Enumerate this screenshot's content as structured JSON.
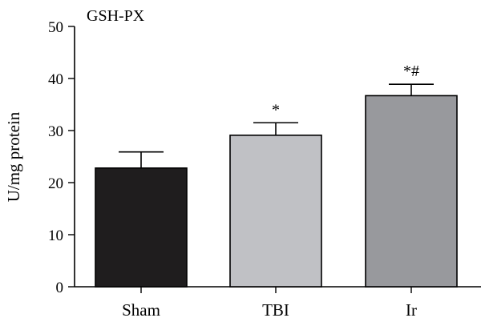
{
  "chart_data": {
    "type": "bar",
    "title": "GSH-PX",
    "xlabel": "",
    "ylabel": "U/mg protein",
    "ylim": [
      0,
      50
    ],
    "yticks": [
      0,
      10,
      20,
      30,
      40,
      50
    ],
    "categories": [
      "Sham",
      "TBI",
      "Ir"
    ],
    "values": [
      22.8,
      29.1,
      36.7
    ],
    "errors": [
      3.1,
      2.4,
      2.2
    ],
    "annotations": [
      "",
      "*",
      "*#"
    ],
    "bar_colors": [
      "#1f1d1e",
      "#c0c1c5",
      "#98999d"
    ],
    "grid": false,
    "legend": "none"
  }
}
